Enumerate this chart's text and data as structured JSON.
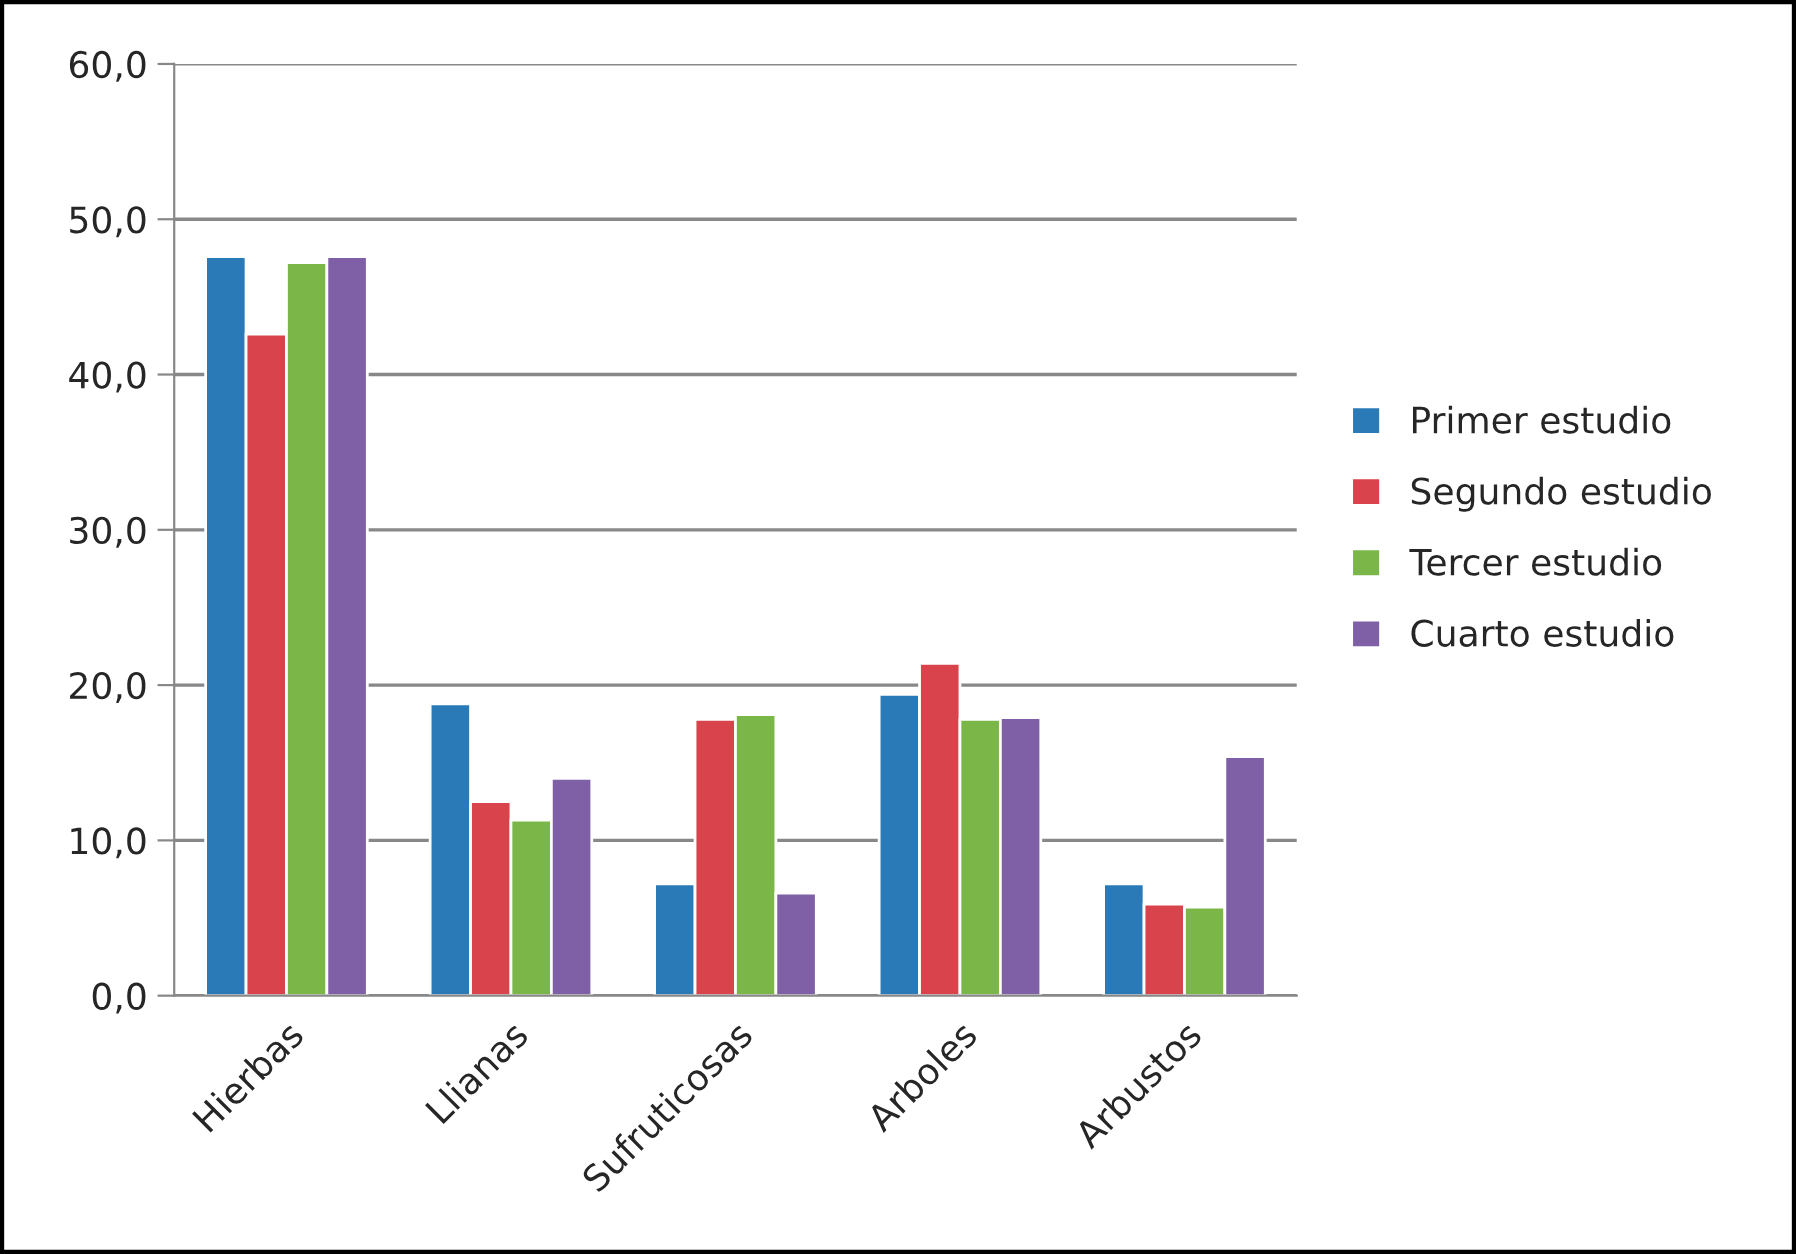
{
  "chart_data": {
    "type": "bar",
    "categories": [
      "Hierbas",
      "Llianas",
      "Sufruticosas",
      "Arboles",
      "Arbustos"
    ],
    "series": [
      {
        "name": "Primer estudio",
        "color": "#2a7ab8",
        "values": [
          47.6,
          18.8,
          7.2,
          19.4,
          7.2
        ]
      },
      {
        "name": "Segundo estudio",
        "color": "#d9434b",
        "values": [
          42.6,
          12.5,
          17.8,
          21.4,
          5.9
        ]
      },
      {
        "name": "Tercer estudio",
        "color": "#7ab648",
        "values": [
          47.2,
          11.3,
          18.1,
          17.8,
          5.7
        ]
      },
      {
        "name": "Cuarto estudio",
        "color": "#7f5fa6",
        "values": [
          47.6,
          14.0,
          6.6,
          17.9,
          15.4
        ]
      }
    ],
    "ylim": [
      0,
      60
    ],
    "yticks": [
      {
        "value": 0,
        "label": "0,0"
      },
      {
        "value": 10,
        "label": "10,0"
      },
      {
        "value": 20,
        "label": "20,0"
      },
      {
        "value": 30,
        "label": "30,0"
      },
      {
        "value": 40,
        "label": "40,0"
      },
      {
        "value": 50,
        "label": "50,0"
      },
      {
        "value": 60,
        "label": "60,0"
      }
    ],
    "grid": "y",
    "legend": "right"
  }
}
